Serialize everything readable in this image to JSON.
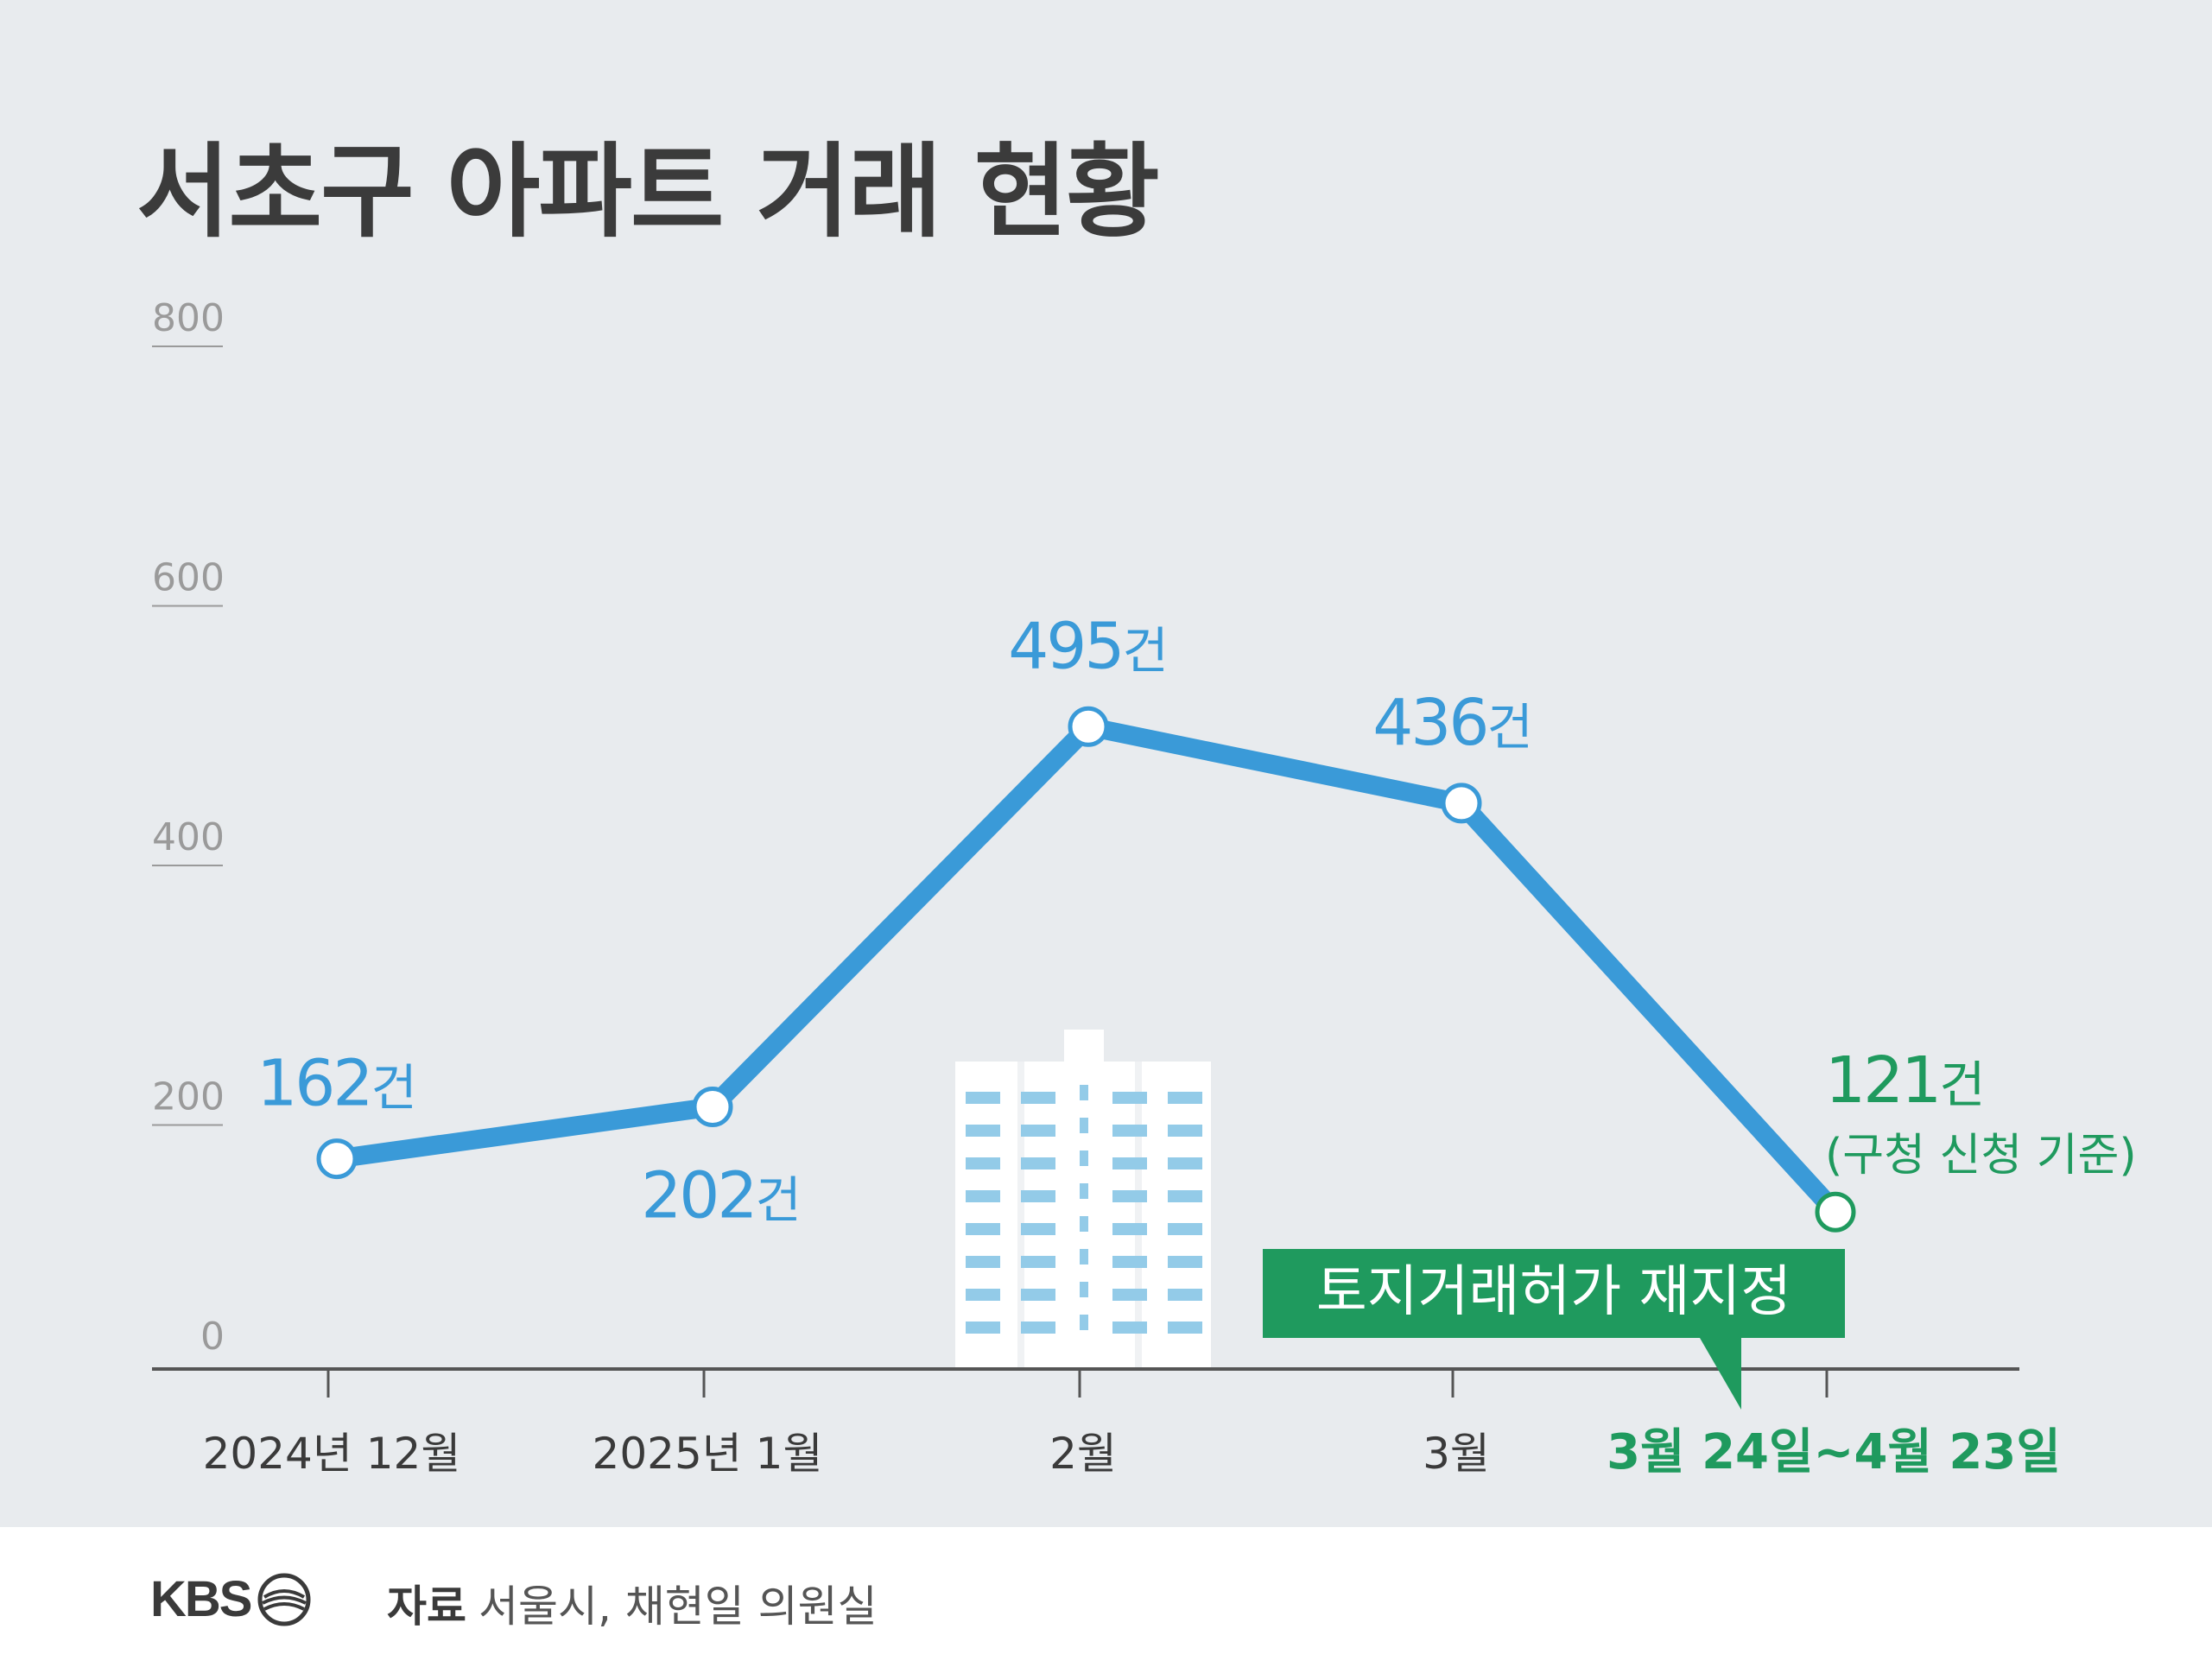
{
  "title": "서초구 아파트 거래 현황",
  "chart_data": {
    "type": "line",
    "title": "서초구 아파트 거래 현황",
    "categories": [
      "2024년 12월",
      "2025년 1월",
      "2월",
      "3월",
      "3월 24일~4월 23일"
    ],
    "values": [
      162,
      202,
      495,
      436,
      121
    ],
    "value_labels": [
      {
        "number": "162",
        "unit": "건"
      },
      {
        "number": "202",
        "unit": "건"
      },
      {
        "number": "495",
        "unit": "건"
      },
      {
        "number": "436",
        "unit": "건"
      },
      {
        "number": "121",
        "unit": "건"
      }
    ],
    "last_point_note": "(구청 신청 기준)",
    "yticks": [
      "0",
      "200",
      "400",
      "600",
      "800"
    ],
    "ylim": [
      0,
      800
    ],
    "grid": false,
    "annotation": "토지거래허가 재지정",
    "colors": {
      "line": "#3a9ad8",
      "highlight": "#1f9a5e",
      "axis": "#555555",
      "tick_label": "#9a9a9a",
      "category_label": "#3a3a3a",
      "background": "#e8ebee"
    }
  },
  "footer": {
    "logo": "KBS",
    "source_label": "자료",
    "source_text": "서울시, 채현일 의원실"
  }
}
